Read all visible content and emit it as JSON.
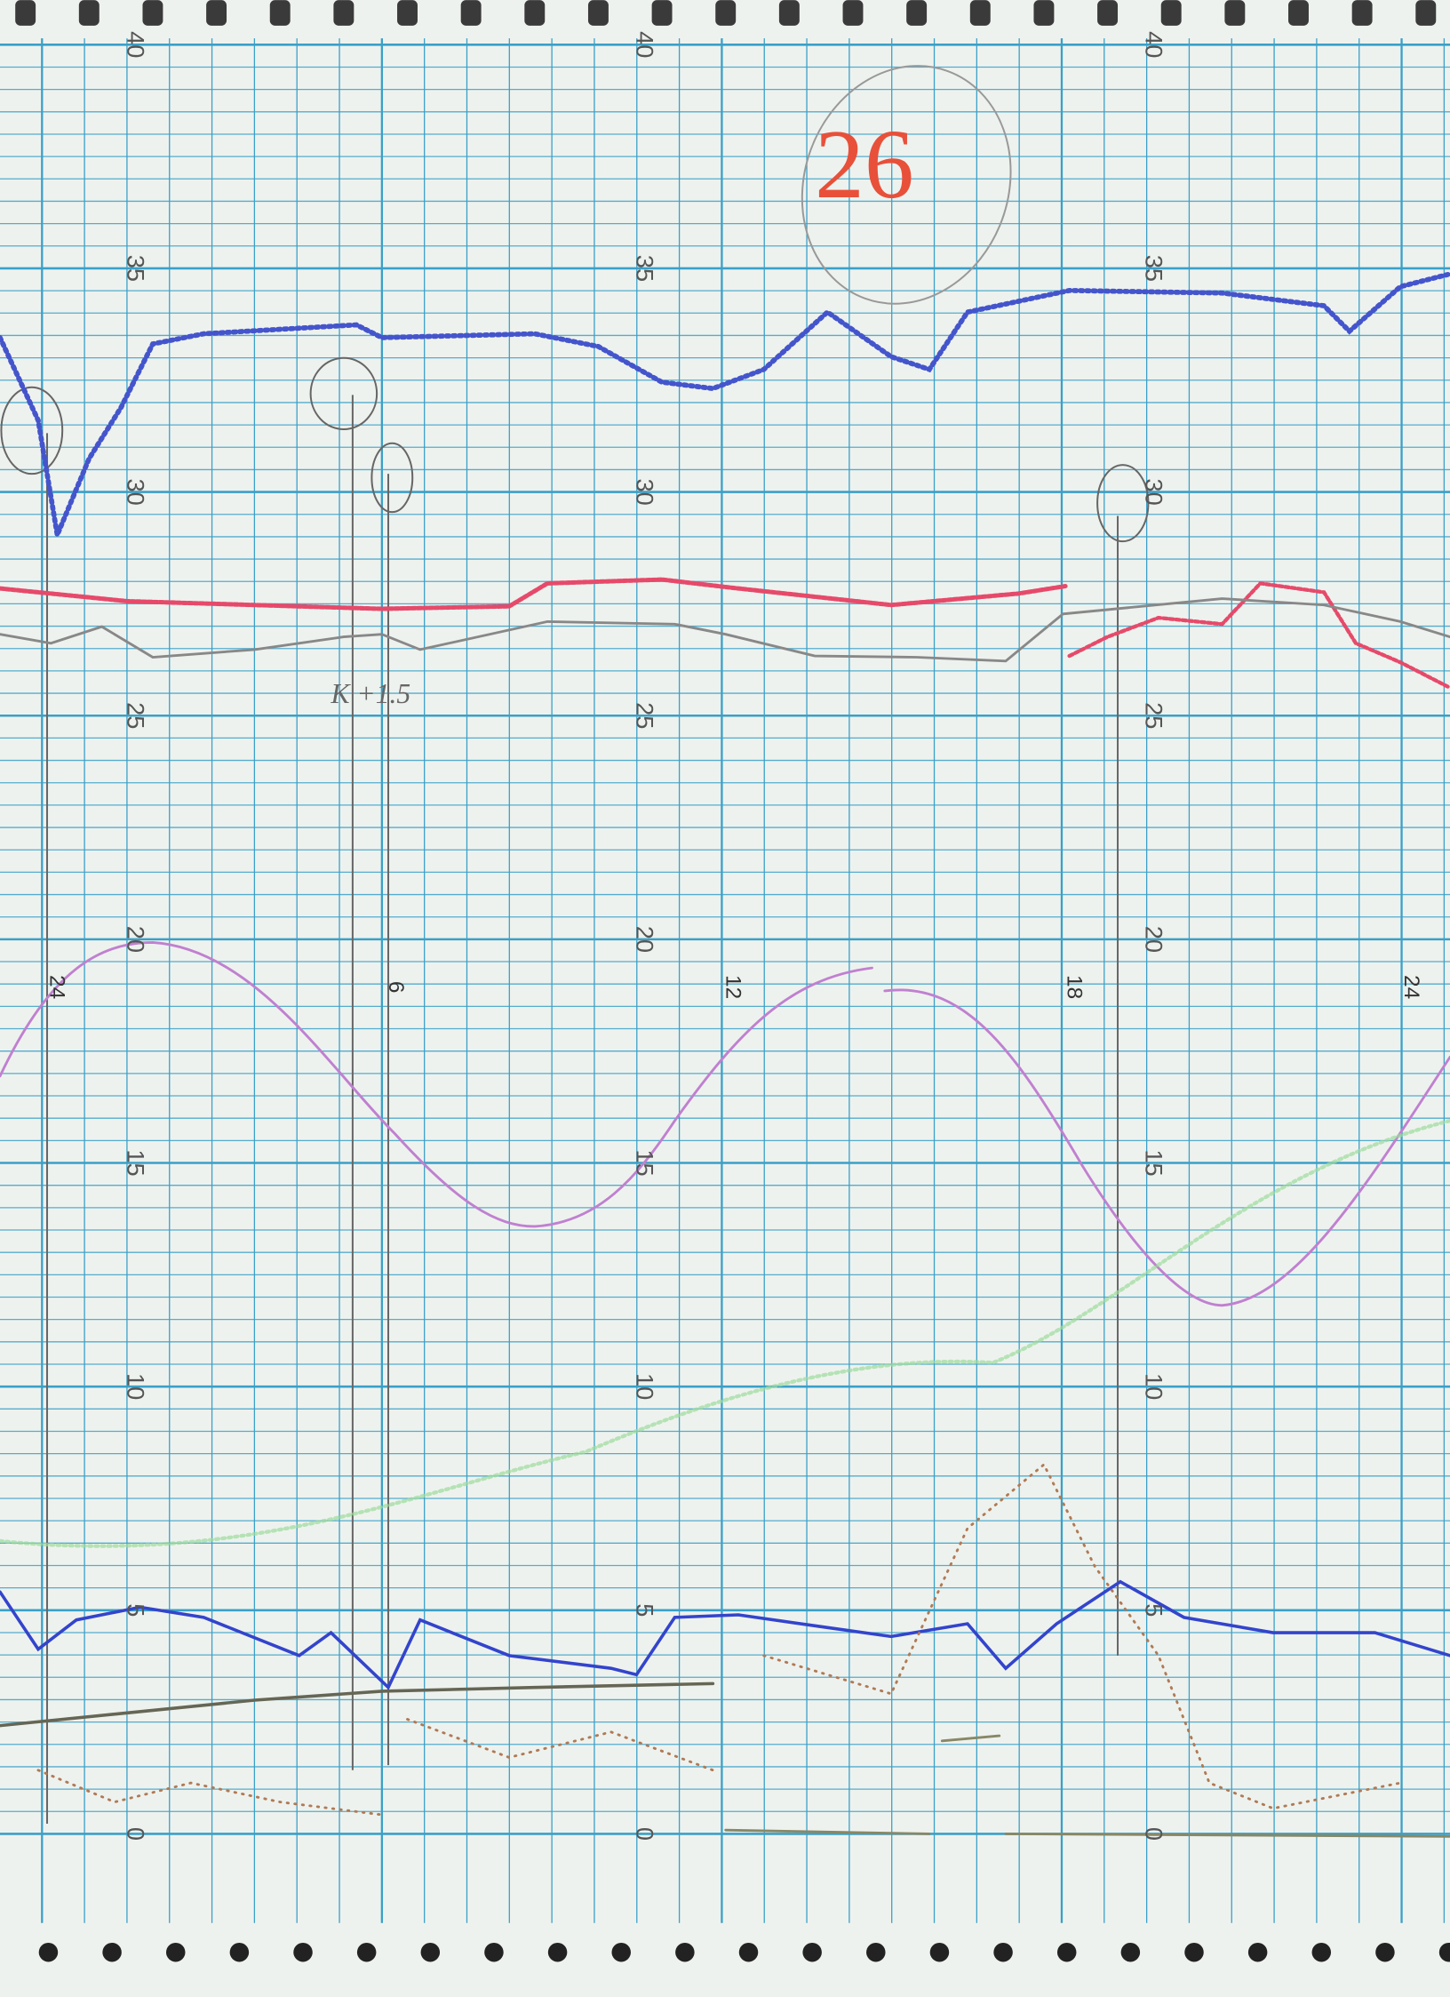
{
  "scale_labels": [
    "40",
    "35",
    "30",
    "25",
    "20",
    "15",
    "10",
    "5",
    "0"
  ],
  "hour_labels": [
    "24",
    "6",
    "12",
    "18",
    "24"
  ],
  "annotations": {
    "sheet_number": "26",
    "note": "K +1.5"
  }
}
